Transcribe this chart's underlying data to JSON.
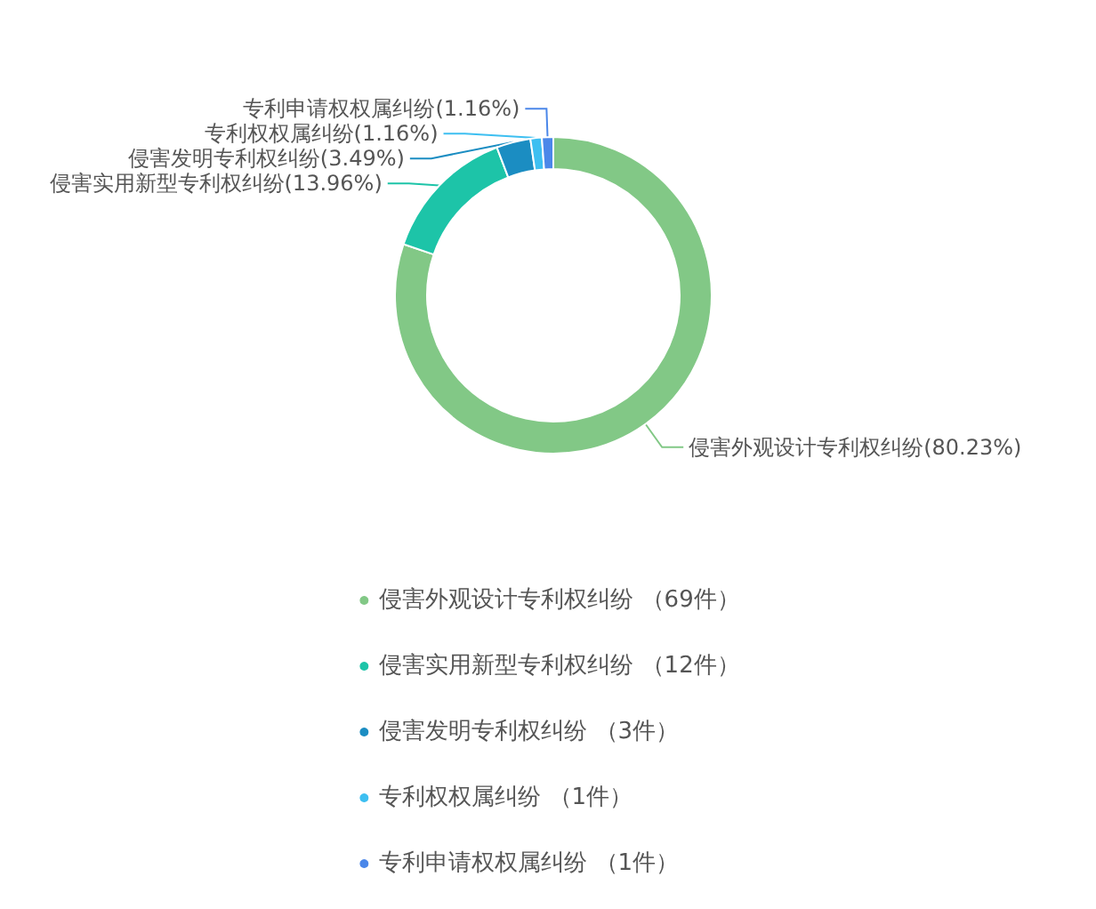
{
  "chart_data": {
    "type": "donut",
    "categories": [
      "侵害外观设计专利权纠纷",
      "侵害实用新型专利权纠纷",
      "侵害发明专利权纠纷",
      "专利权权属纠纷",
      "专利申请权权属纠纷"
    ],
    "values": [
      80.23,
      13.96,
      3.49,
      1.16,
      1.16
    ],
    "colors": [
      "#82c886",
      "#1dc4a8",
      "#1b8dc2",
      "#3dbff1",
      "#4b87e9"
    ],
    "value_labels": [
      "(80.23%)",
      "(13.96%)",
      "(3.49%)",
      "(1.16%)",
      "(1.16%)"
    ],
    "annotations": [
      "（69件）",
      "（12件）",
      "（3件）",
      "（1件）",
      "（1件）"
    ],
    "legend": "bottom"
  }
}
